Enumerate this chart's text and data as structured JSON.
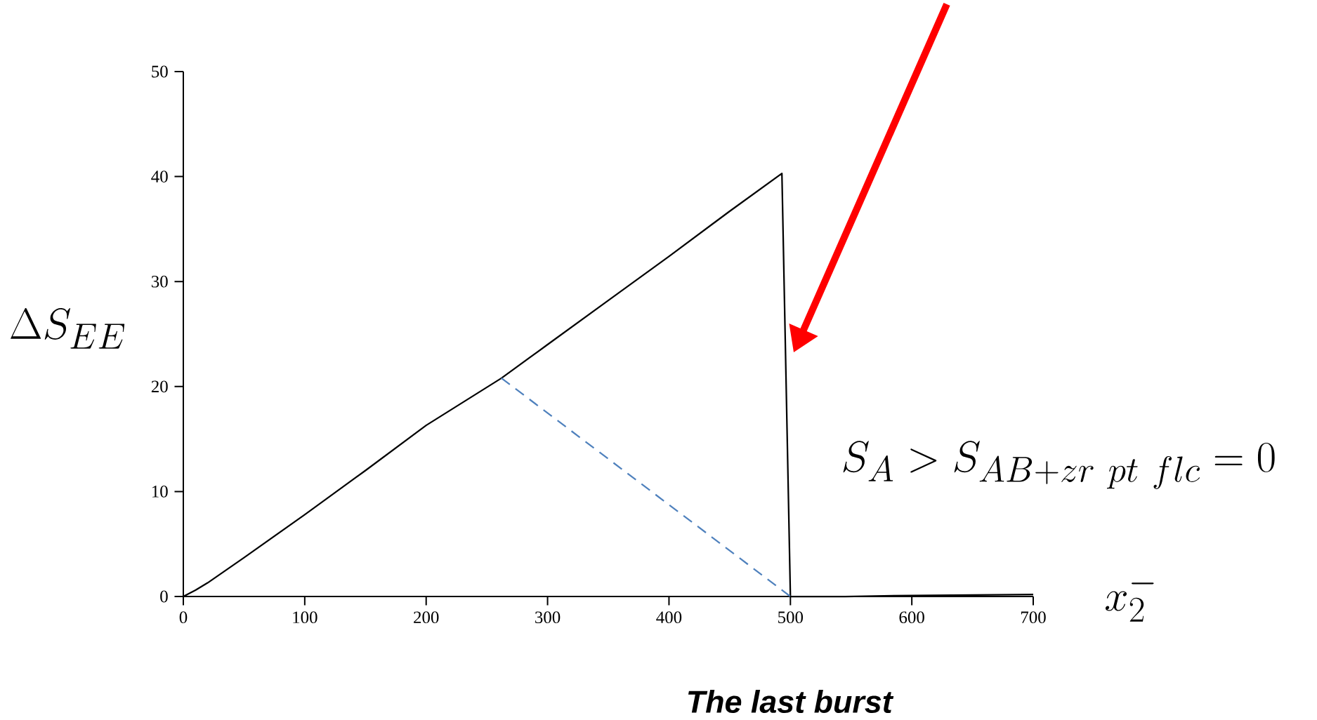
{
  "chart_data": {
    "type": "line",
    "xlabel": "x_2^{-}",
    "ylabel": "\\Delta S_{EE}",
    "xlim": [
      0,
      700
    ],
    "ylim": [
      0,
      50
    ],
    "xticks": [
      0,
      100,
      200,
      300,
      400,
      500,
      600,
      700
    ],
    "yticks": [
      0,
      10,
      20,
      30,
      40,
      50
    ],
    "grid": false,
    "marker": "none",
    "series": [
      {
        "color": "#000000",
        "line_style": "solid",
        "x": [
          0,
          10,
          20,
          50,
          100,
          150,
          200,
          262,
          300,
          350,
          400,
          450,
          493,
          500,
          545,
          600,
          650,
          700
        ],
        "values": [
          0,
          0.6,
          1.3,
          3.7,
          7.8,
          12,
          16.3,
          20.8,
          24,
          28.2,
          32.4,
          36.7,
          40.3,
          0,
          0,
          0.1,
          0.15,
          0.2
        ]
      },
      {
        "color": "#4f81bd",
        "line_style": "dashed",
        "x": [
          262,
          500
        ],
        "values": [
          20.8,
          0
        ]
      }
    ],
    "annotations": [
      "S_{A} > S_{AB+zr\\ pt\\ flc} = 0",
      "The last burst"
    ]
  }
}
